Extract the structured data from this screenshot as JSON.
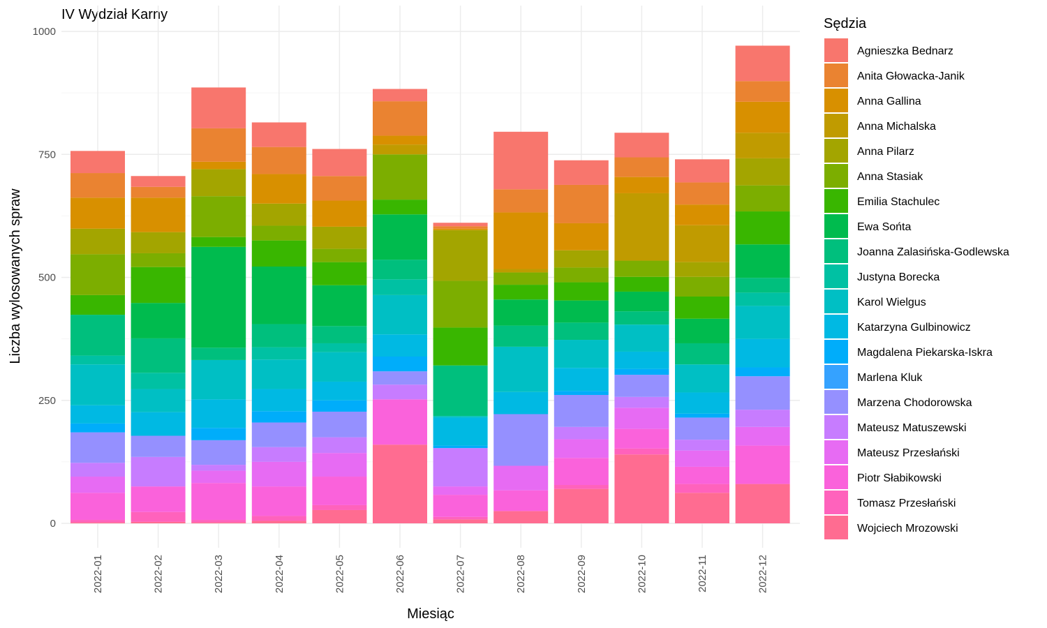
{
  "chart_data": {
    "type": "bar",
    "stacked": true,
    "title": "IV Wydział Karny",
    "xlabel": "Miesiąc",
    "ylabel": "Liczba wylosowanych spraw",
    "ylim": [
      0,
      1000
    ],
    "yticks": [
      0,
      250,
      500,
      750,
      1000
    ],
    "grid": true,
    "legend_title": "Sędzia",
    "legend_position": "right",
    "categories": [
      "2022-01",
      "2022-02",
      "2022-03",
      "2022-04",
      "2022-05",
      "2022-06",
      "2022-07",
      "2022-08",
      "2022-09",
      "2022-10",
      "2022-11",
      "2022-12"
    ],
    "series": [
      {
        "name": "Agnieszka Bednarz",
        "color": "#F8766D",
        "values": [
          45,
          22,
          83,
          50,
          55,
          25,
          7,
          117,
          50,
          50,
          47,
          72
        ]
      },
      {
        "name": "Anita Głowacka-Janik",
        "color": "#EA8331",
        "values": [
          50,
          22,
          68,
          55,
          50,
          70,
          5,
          47,
          78,
          40,
          45,
          42
        ]
      },
      {
        "name": "Anna Gallina",
        "color": "#D89000",
        "values": [
          63,
          70,
          15,
          60,
          53,
          18,
          3,
          115,
          55,
          33,
          42,
          63
        ]
      },
      {
        "name": "Anna Michalska",
        "color": "#C09B00",
        "values": [
          0,
          0,
          0,
          0,
          0,
          20,
          0,
          7,
          0,
          137,
          75,
          52
        ]
      },
      {
        "name": "Anna Pilarz",
        "color": "#A3A500",
        "values": [
          52,
          43,
          55,
          45,
          45,
          0,
          103,
          0,
          35,
          0,
          30,
          55
        ]
      },
      {
        "name": "Anna Stasiak",
        "color": "#7CAE00",
        "values": [
          83,
          28,
          83,
          30,
          27,
          92,
          95,
          25,
          30,
          33,
          40,
          53
        ]
      },
      {
        "name": "Emilia Stachulec",
        "color": "#39B600",
        "values": [
          40,
          73,
          20,
          53,
          47,
          30,
          77,
          30,
          37,
          30,
          45,
          67
        ]
      },
      {
        "name": "Ewa Sońta",
        "color": "#00BB4E",
        "values": [
          0,
          72,
          205,
          117,
          83,
          92,
          0,
          53,
          45,
          40,
          50,
          68
        ]
      },
      {
        "name": "Joanna Zalasińska-Godlewska",
        "color": "#00BF7D",
        "values": [
          83,
          70,
          25,
          47,
          35,
          40,
          103,
          43,
          35,
          27,
          43,
          30
        ]
      },
      {
        "name": "Justyna Borecka",
        "color": "#00C1A3",
        "values": [
          18,
          33,
          0,
          25,
          18,
          32,
          0,
          0,
          0,
          0,
          0,
          27
        ]
      },
      {
        "name": "Karol Wielgus",
        "color": "#00BFC4",
        "values": [
          83,
          47,
          80,
          60,
          60,
          80,
          3,
          92,
          57,
          55,
          57,
          67
        ]
      },
      {
        "name": "Katarzyna Gulbinowicz",
        "color": "#00B9E3",
        "values": [
          37,
          48,
          58,
          45,
          38,
          45,
          57,
          45,
          47,
          35,
          43,
          58
        ]
      },
      {
        "name": "Magdalena Piekarska-Iskra",
        "color": "#00ADFA",
        "values": [
          18,
          0,
          25,
          23,
          23,
          30,
          5,
          0,
          8,
          12,
          8,
          18
        ]
      },
      {
        "name": "Marlena Kluk",
        "color": "#35A2FF",
        "values": [
          0,
          0,
          0,
          0,
          0,
          0,
          0,
          0,
          0,
          0,
          0,
          0
        ]
      },
      {
        "name": "Marzena Chodorowska",
        "color": "#9590FF",
        "values": [
          62,
          43,
          50,
          50,
          52,
          27,
          0,
          105,
          65,
          45,
          45,
          68
        ]
      },
      {
        "name": "Mateusz Matuszewski",
        "color": "#C77CFF",
        "values": [
          28,
          60,
          12,
          30,
          32,
          30,
          78,
          0,
          25,
          22,
          22,
          35
        ]
      },
      {
        "name": "Mateusz Przesłański",
        "color": "#E76BF3",
        "values": [
          33,
          0,
          25,
          50,
          48,
          0,
          17,
          50,
          38,
          43,
          33,
          38
        ]
      },
      {
        "name": "Piotr Słabikowski",
        "color": "#FA62DB",
        "values": [
          55,
          52,
          75,
          60,
          58,
          92,
          45,
          42,
          55,
          40,
          35,
          78
        ]
      },
      {
        "name": "Tomasz Przesłański",
        "color": "#FF62BC",
        "values": [
          5,
          20,
          5,
          10,
          10,
          0,
          5,
          0,
          8,
          12,
          18,
          0
        ]
      },
      {
        "name": "Wojciech Mrozowski",
        "color": "#FF6C91",
        "values": [
          2,
          3,
          2,
          5,
          27,
          160,
          8,
          25,
          70,
          140,
          62,
          80
        ]
      }
    ]
  }
}
